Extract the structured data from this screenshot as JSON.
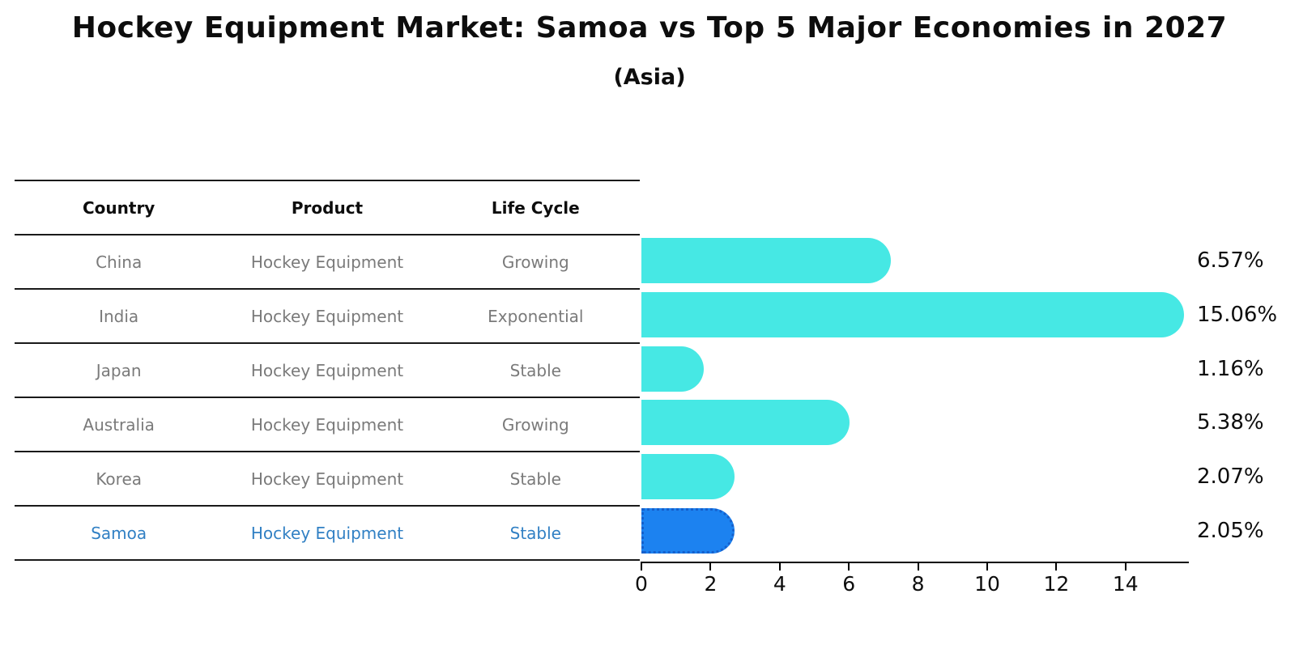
{
  "title": "Hockey Equipment Market: Samoa vs Top 5 Major Economies in 2027",
  "subtitle": "(Asia)",
  "table": {
    "headers": [
      "Country",
      "Product",
      "Life Cycle"
    ],
    "rows": [
      {
        "country": "China",
        "product": "Hockey Equipment",
        "life_cycle": "Growing",
        "highlight": false
      },
      {
        "country": "India",
        "product": "Hockey Equipment",
        "life_cycle": "Exponential",
        "highlight": false
      },
      {
        "country": "Japan",
        "product": "Hockey Equipment",
        "life_cycle": "Stable",
        "highlight": false
      },
      {
        "country": "Australia",
        "product": "Hockey Equipment",
        "life_cycle": "Growing",
        "highlight": false
      },
      {
        "country": "Korea",
        "product": "Hockey Equipment",
        "life_cycle": "Stable",
        "highlight": false
      },
      {
        "country": "Samoa",
        "product": "Hockey Equipment",
        "life_cycle": "Stable",
        "highlight": true
      }
    ]
  },
  "chart_data": {
    "type": "bar",
    "orientation": "horizontal",
    "title": "Hockey Equipment Market: Samoa vs Top 5 Major Economies in 2027 (Asia)",
    "categories": [
      "China",
      "India",
      "Japan",
      "Australia",
      "Korea",
      "Samoa"
    ],
    "values": [
      6.57,
      15.06,
      1.16,
      5.38,
      2.07,
      2.05
    ],
    "value_labels": [
      "6.57%",
      "15.06%",
      "1.16%",
      "5.38%",
      "2.07%",
      "2.05%"
    ],
    "highlight_index": 5,
    "xlabel": "",
    "ylabel": "",
    "xlim": [
      0,
      15.8
    ],
    "x_ticks": [
      0,
      2,
      4,
      6,
      8,
      10,
      12,
      14
    ],
    "grid": false,
    "legend": false,
    "colors": {
      "bar_default": "#46E8E4",
      "bar_highlight": "#1C82F0",
      "bar_highlight_border": "#1560cc",
      "highlight_text": "#3180c4",
      "row_text": "#7a7a7a",
      "axis_text": "#0d0d0d"
    }
  }
}
